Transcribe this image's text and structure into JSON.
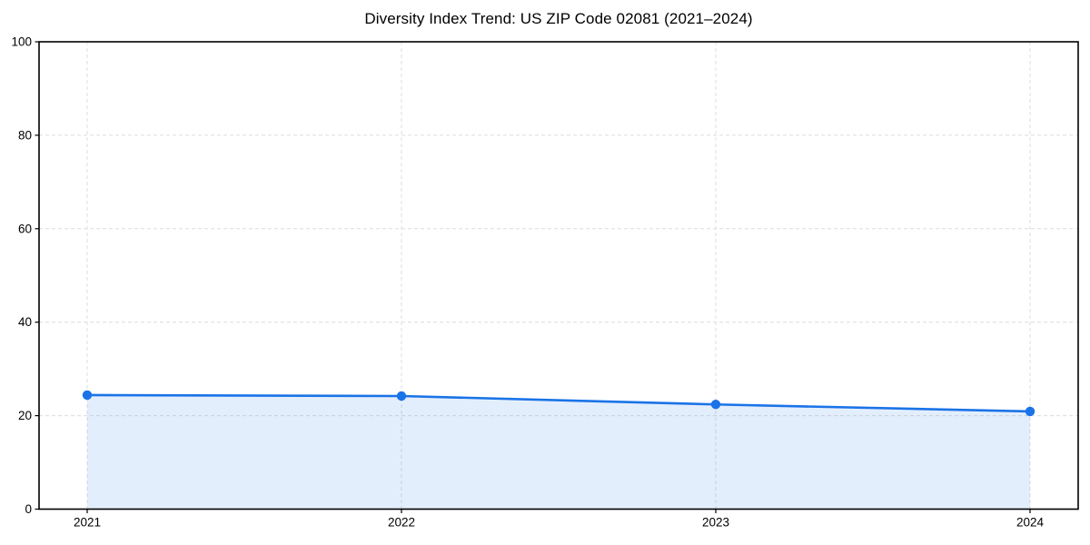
{
  "chart_data": {
    "type": "line",
    "title": "Diversity Index Trend: US ZIP Code 02081 (2021–2024)",
    "categories": [
      "2021",
      "2022",
      "2023",
      "2024"
    ],
    "series": [
      {
        "name": "Diversity Index",
        "values": [
          24.4,
          24.2,
          22.4,
          20.9
        ]
      }
    ],
    "xlabel": "",
    "ylabel": "",
    "ylim": [
      0,
      100
    ],
    "yticks": [
      0,
      20,
      40,
      60,
      80,
      100
    ],
    "grid": true,
    "grid_style": "dashed",
    "legend_position": "none",
    "area_fill": true,
    "colors": {
      "line": "#1a73e8",
      "marker": "#1a73e8",
      "fill": "rgba(26,115,232,0.12)",
      "grid": "#dcdcdc",
      "spine": "#000000",
      "tick_label": "#000000"
    }
  }
}
